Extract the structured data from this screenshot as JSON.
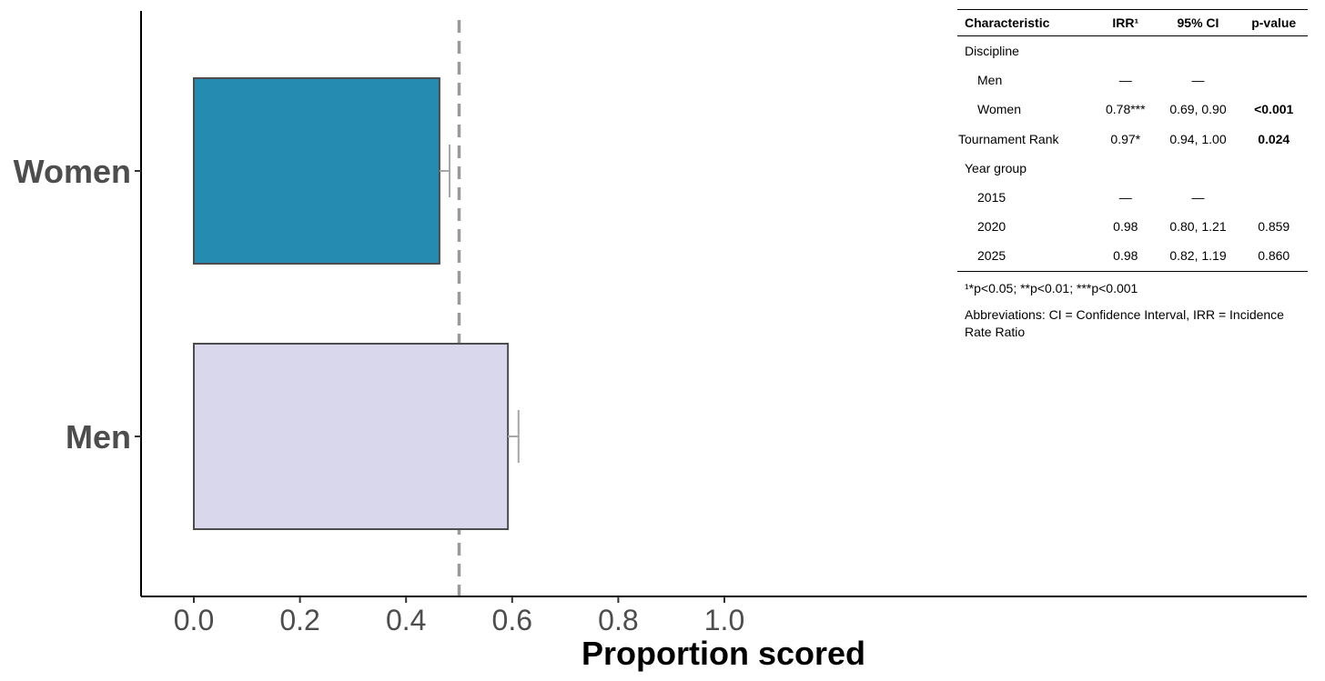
{
  "chart_data": {
    "type": "bar",
    "orientation": "horizontal",
    "categories": [
      "Women",
      "Men"
    ],
    "values": [
      0.463,
      0.592
    ],
    "error_upper": [
      0.482,
      0.612
    ],
    "colors": [
      "#258BB0",
      "#D8D7EB"
    ],
    "bar_edge_color": "#4d4d4d",
    "errorbar_color": "#a6a6a6",
    "reference_line": {
      "x": 0.5,
      "style": "dashed",
      "color": "#999999"
    },
    "xlabel": "Proportion scored",
    "ylabel": "",
    "xlim": [
      -0.05,
      1.05
    ],
    "xticks": [
      0.0,
      0.2,
      0.4,
      0.6,
      0.8,
      1.0
    ],
    "xtick_labels": [
      "0.0",
      "0.2",
      "0.4",
      "0.6",
      "0.8",
      "1.0"
    ],
    "grid": false
  },
  "table": {
    "headers": {
      "characteristic": "Characteristic",
      "irr": "IRR¹",
      "ci": "95% CI",
      "p": "p-value"
    },
    "rows": [
      {
        "label": "Discipline",
        "irr": "",
        "ci": "",
        "p": ""
      },
      {
        "label": "Men",
        "irr": "—",
        "ci": "—",
        "p": ""
      },
      {
        "label": "Women",
        "irr": "0.78***",
        "ci": "0.69, 0.90",
        "p": "<0.001"
      },
      {
        "label": "Tournament Rank",
        "irr": "0.97*",
        "ci": "0.94, 1.00",
        "p": "0.024"
      },
      {
        "label": "Year group",
        "irr": "",
        "ci": "",
        "p": ""
      },
      {
        "label": "2015",
        "irr": "—",
        "ci": "—",
        "p": ""
      },
      {
        "label": "2020",
        "irr": "0.98",
        "ci": "0.80, 1.21",
        "p": "0.859"
      },
      {
        "label": "2025",
        "irr": "0.98",
        "ci": "0.82, 1.19",
        "p": "0.860"
      }
    ],
    "footnote": "¹*p<0.05; **p<0.01; ***p<0.001",
    "abbreviations": "Abbreviations: CI = Confidence Interval, IRR = Incidence Rate Ratio"
  }
}
